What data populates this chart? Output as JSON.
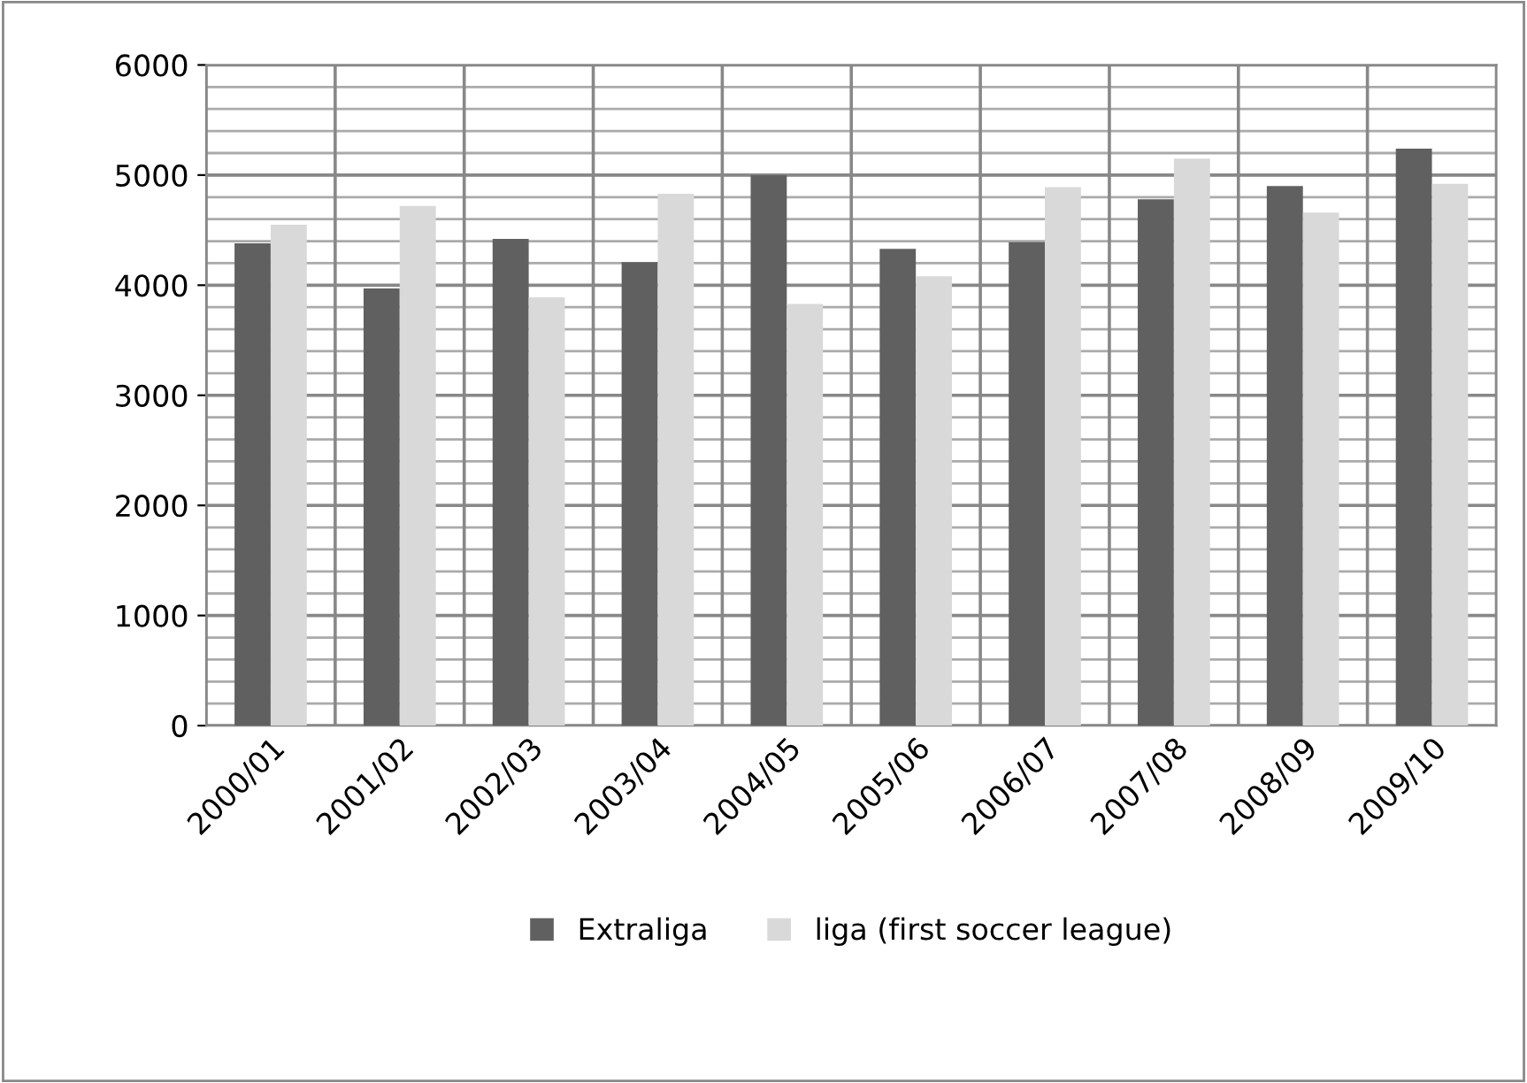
{
  "chart_data": {
    "type": "bar",
    "categories": [
      "2000/01",
      "2001/02",
      "2002/03",
      "2003/04",
      "2004/05",
      "2005/06",
      "2006/07",
      "2007/08",
      "2008/09",
      "2009/10"
    ],
    "series": [
      {
        "name": "Extraliga",
        "color": "#606060",
        "values": [
          4380,
          3970,
          4420,
          4210,
          5000,
          4330,
          4390,
          4780,
          4900,
          5240
        ]
      },
      {
        "name": "liga (first soccer league)",
        "color": "#d9d9d9",
        "values": [
          4550,
          4720,
          3890,
          4830,
          3830,
          4080,
          4890,
          5150,
          4660,
          4920
        ]
      }
    ],
    "ylim": [
      0,
      6000
    ],
    "yticks": [
      0,
      1000,
      2000,
      3000,
      4000,
      5000,
      6000
    ],
    "grid": true,
    "legend": "bottom"
  }
}
